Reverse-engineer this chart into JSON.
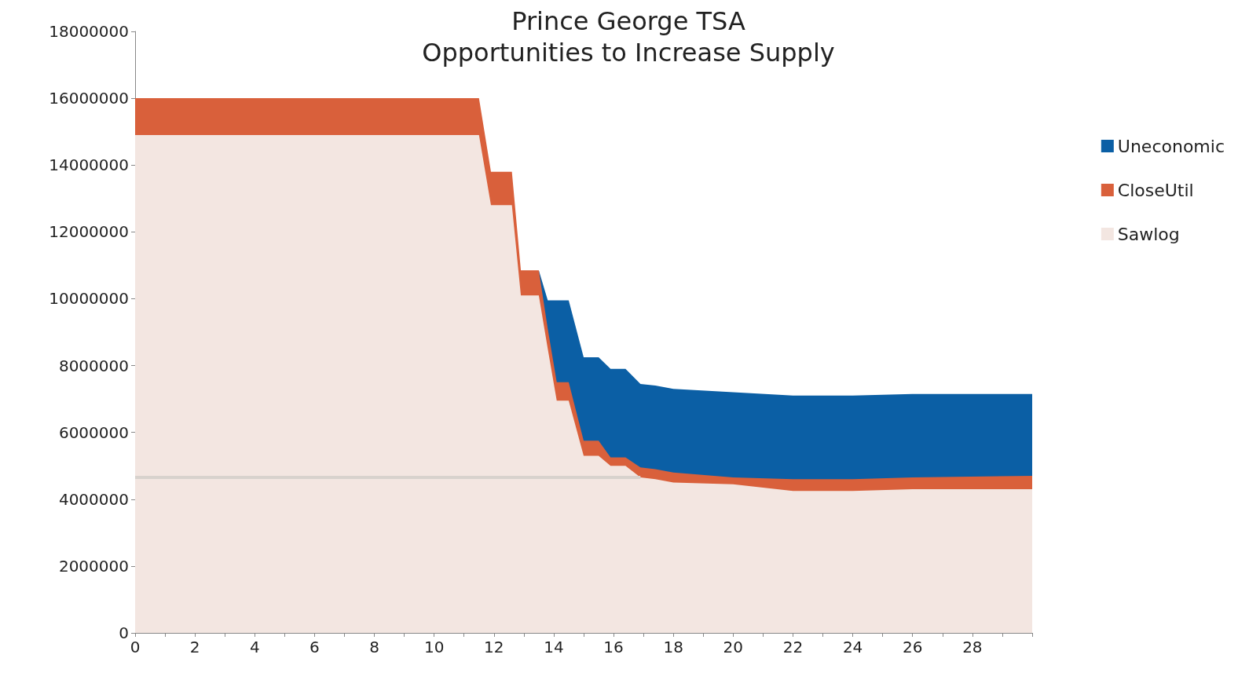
{
  "chart_data": {
    "type": "area",
    "title": "Prince George TSA\nOpportunities to Increase Supply",
    "stacked": true,
    "x": [
      0,
      11.5,
      11.9,
      12.6,
      12.9,
      13.5,
      13.8,
      14.1,
      14.5,
      15,
      15.5,
      15.9,
      16.4,
      16.9,
      17.4,
      18,
      20,
      22,
      24,
      26,
      30
    ],
    "series": [
      {
        "name": "Sawlog",
        "color": "#f3e6e1",
        "values": [
          14900000,
          14900000,
          12800000,
          12800000,
          10100000,
          10100000,
          8500000,
          6950000,
          6950000,
          5300000,
          5300000,
          5000000,
          5000000,
          4650000,
          4600000,
          4500000,
          4450000,
          4250000,
          4250000,
          4300000,
          4300000
        ]
      },
      {
        "name": "CloseUtil",
        "color": "#d9603b",
        "values": [
          1100000,
          1100000,
          1000000,
          1000000,
          750000,
          750000,
          600000,
          550000,
          550000,
          450000,
          450000,
          250000,
          250000,
          300000,
          300000,
          300000,
          200000,
          350000,
          350000,
          350000,
          400000
        ]
      },
      {
        "name": "Uneconomic",
        "color": "#0b5fa5",
        "values": [
          null,
          null,
          null,
          null,
          null,
          0,
          850000,
          2450000,
          2450000,
          2500000,
          2500000,
          2650000,
          2650000,
          2500000,
          2500000,
          2500000,
          2550000,
          2500000,
          2500000,
          2500000,
          2450000
        ]
      }
    ],
    "xlim": [
      0,
      30
    ],
    "xticks": [
      0,
      {
        "value": 1,
        "label": null
      },
      2,
      {
        "value": 3,
        "label": null
      },
      4,
      {
        "value": 5,
        "label": null
      },
      6,
      {
        "value": 7,
        "label": null
      },
      8,
      {
        "value": 9,
        "label": null
      },
      10,
      {
        "value": 11,
        "label": null
      },
      12,
      {
        "value": 13,
        "label": null
      },
      14,
      {
        "value": 15,
        "label": null
      },
      16,
      {
        "value": 17,
        "label": null
      },
      18,
      {
        "value": 19,
        "label": null
      },
      20,
      {
        "value": 21,
        "label": null
      },
      22,
      {
        "value": 23,
        "label": null
      },
      24,
      {
        "value": 25,
        "label": null
      },
      26,
      {
        "value": 27,
        "label": null
      },
      28,
      {
        "value": 29,
        "label": null
      },
      {
        "value": 30,
        "label": null
      }
    ],
    "ylim": [
      0,
      18000000
    ],
    "yticks": [
      0,
      2000000,
      4000000,
      6000000,
      8000000,
      10000000,
      12000000,
      14000000,
      16000000,
      18000000
    ],
    "ref_lines": [
      {
        "axis": "y",
        "value": 4650000,
        "label": null,
        "color": "#d8d2cd"
      }
    ],
    "grid": false,
    "legend": "right"
  }
}
